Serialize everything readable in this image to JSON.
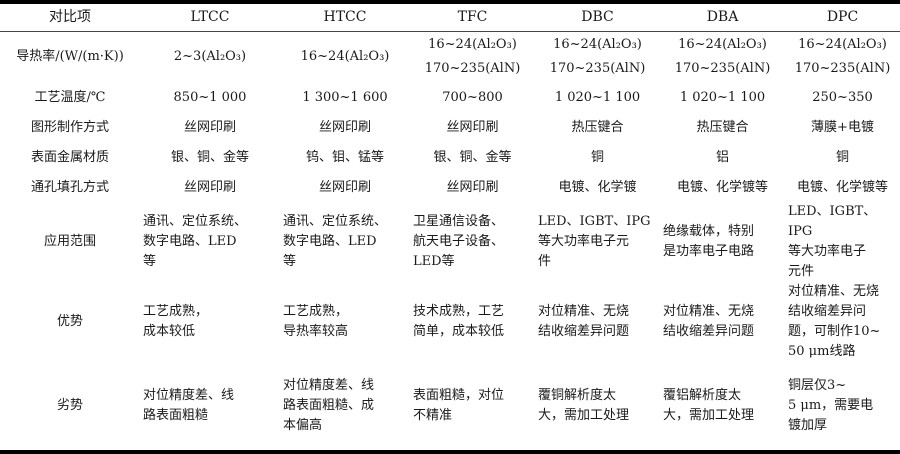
{
  "headers": [
    "对比项",
    "LTCC",
    "HTCC",
    "TFC",
    "DBC",
    "DBA",
    "DPC"
  ],
  "rows": [
    {
      "label": "导热率/(W/(m·K))",
      "cells": [
        [
          "2~3(Al₂O₃)"
        ],
        [
          "16~24(Al₂O₃)"
        ],
        [
          "16~24(Al₂O₃)",
          "170~235(AlN)"
        ],
        [
          "16~24(Al₂O₃)",
          "170~235(AlN)"
        ],
        [
          "16~24(Al₂O₃)",
          "170~235(AlN)"
        ],
        [
          "16~24(Al₂O₃)",
          "170~235(AlN)"
        ]
      ]
    },
    {
      "label": "工艺温度/℃",
      "cells": [
        [
          "850~1 000"
        ],
        [
          "1 300~1 600"
        ],
        [
          "700~800"
        ],
        [
          "1 020~1 100"
        ],
        [
          "1 020~1 100"
        ],
        [
          "250~350"
        ]
      ]
    },
    {
      "label": "图形制作方式",
      "cells": [
        [
          "丝网印刷"
        ],
        [
          "丝网印刷"
        ],
        [
          "丝网印刷"
        ],
        [
          "热压键合"
        ],
        [
          "热压键合"
        ],
        [
          "薄膜+电镀"
        ]
      ]
    },
    {
      "label": "表面金属材质",
      "cells": [
        [
          "银、铜、金等"
        ],
        [
          "钨、钼、锰等"
        ],
        [
          "银、铜、金等"
        ],
        [
          "铜"
        ],
        [
          "铝"
        ],
        [
          "铜"
        ]
      ]
    },
    {
      "label": "通孔填孔方式",
      "cells": [
        [
          "丝网印刷"
        ],
        [
          "丝网印刷"
        ],
        [
          "丝网印刷"
        ],
        [
          "电镀、化学镀"
        ],
        [
          "电镀、化学镀等"
        ],
        [
          "电镀、化学镀等"
        ]
      ]
    },
    {
      "label": "应用范围",
      "cells": [
        [
          "通讯、定位系统、",
          "数字电路、LED",
          "等"
        ],
        [
          "通讯、定位系统、",
          "数字电路、LED",
          "等"
        ],
        [
          "卫星通信设备、",
          "航天电子设备、",
          "LED等"
        ],
        [
          "LED、IGBT、IPG",
          "等大功率电子元",
          "件"
        ],
        [
          "绝缘载体，特别",
          "是功率电子电路"
        ],
        [
          "LED、IGBT、IPG",
          "等大功率电子",
          "元件"
        ]
      ]
    },
    {
      "label": "优势",
      "cells": [
        [
          "工艺成熟，",
          "成本较低"
        ],
        [
          "工艺成熟，",
          "导热率较高"
        ],
        [
          "技术成熟，工艺",
          "简单，成本较低"
        ],
        [
          "对位精准、无烧",
          "结收缩差异问题"
        ],
        [
          "对位精准、无烧",
          "结收缩差异问题"
        ],
        [
          "对位精准、无烧",
          "结收缩差异问",
          "题，可制作10~",
          "50 μm线路"
        ]
      ]
    },
    {
      "label": "劣势",
      "cells": [
        [
          "对位精度差、线",
          "路表面粗糙"
        ],
        [
          "对位精度差、线",
          "路表面粗糙、成",
          "本偏高"
        ],
        [
          "表面粗糙，对位",
          "不精准"
        ],
        [
          "覆铜解析度太",
          "大，需加工处理"
        ],
        [
          "覆铝解析度太",
          "大，需加工处理"
        ],
        [
          "铜层仅3~",
          "5 μm，需要电",
          "镀加厚"
        ]
      ]
    }
  ]
}
